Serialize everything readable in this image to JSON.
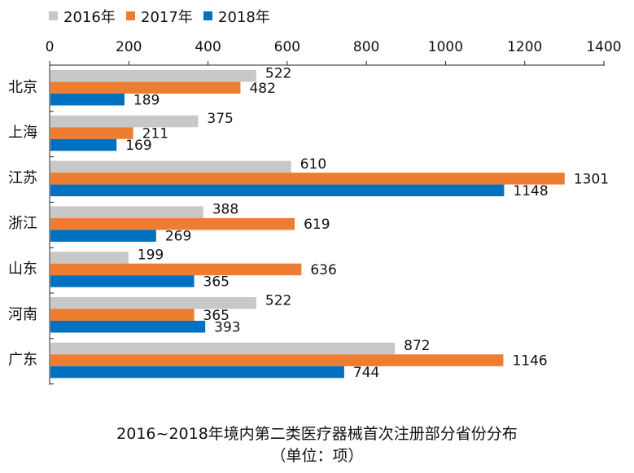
{
  "chart_data": {
    "type": "bar",
    "orientation": "horizontal",
    "title": "2016~2018年境内第二类医疗器械首次注册部分省份分布",
    "subtitle": "（单位：项）",
    "categories": [
      "北京",
      "上海",
      "江苏",
      "浙江",
      "山东",
      "河南",
      "广东"
    ],
    "series": [
      {
        "name": "2016年",
        "color": "#c8c8c8",
        "values": [
          522,
          375,
          610,
          388,
          199,
          522,
          872
        ]
      },
      {
        "name": "2017年",
        "color": "#ed7d31",
        "values": [
          482,
          211,
          1301,
          619,
          636,
          365,
          1146
        ]
      },
      {
        "name": "2018年",
        "color": "#0070c0",
        "values": [
          189,
          169,
          1148,
          269,
          365,
          393,
          744
        ]
      }
    ],
    "xlim": [
      0,
      1400
    ],
    "xticks": [
      0,
      200,
      400,
      600,
      800,
      1000,
      1200,
      1400
    ],
    "x_axis_position": "top",
    "grid": false,
    "legend_position": "top-left",
    "data_labels": true
  }
}
